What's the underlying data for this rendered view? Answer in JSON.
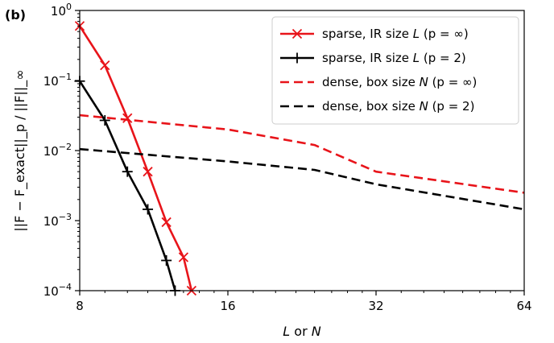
{
  "chart_data": {
    "type": "line",
    "panel_label": "(b)",
    "xlabel": "L or N",
    "ylabel": "||F − F_exact||_p / ||F||_∞",
    "x_scale": "log2",
    "y_scale": "log",
    "xlim": [
      8,
      64
    ],
    "ylim": [
      0.0001,
      1
    ],
    "x_ticks": [
      8,
      16,
      32,
      64
    ],
    "y_ticks": [
      0.0001,
      0.001,
      0.01,
      0.1,
      1
    ],
    "y_tick_labels": [
      {
        "base": "10",
        "exp": "−4"
      },
      {
        "base": "10",
        "exp": "−3"
      },
      {
        "base": "10",
        "exp": "−2"
      },
      {
        "base": "10",
        "exp": "−1"
      },
      {
        "base": "10",
        "exp": "0"
      }
    ],
    "grid": false,
    "legend_position": "top-right",
    "series": [
      {
        "name": "sparse, IR size L (p = ∞)",
        "color": "#e8141a",
        "line_style": "solid",
        "marker": "x",
        "x": [
          8,
          9,
          10,
          11,
          12,
          13,
          13.5
        ],
        "y": [
          0.6,
          0.165,
          0.029,
          0.005,
          0.00095,
          0.0003,
          0.0001
        ]
      },
      {
        "name": "sparse, IR size L (p = 2)",
        "color": "#000000",
        "line_style": "solid",
        "marker": "+",
        "x": [
          8,
          9,
          10,
          11,
          12,
          12.5
        ],
        "y": [
          0.098,
          0.027,
          0.005,
          0.00145,
          0.00027,
          0.0001
        ]
      },
      {
        "name": "dense, box size N (p = ∞)",
        "color": "#e8141a",
        "line_style": "dashed",
        "marker": "none",
        "x": [
          8,
          16,
          24,
          32,
          64
        ],
        "y": [
          0.032,
          0.02,
          0.012,
          0.005,
          0.0025
        ]
      },
      {
        "name": "dense, box size N (p = 2)",
        "color": "#000000",
        "line_style": "dashed",
        "marker": "none",
        "x": [
          8,
          16,
          24,
          32,
          64
        ],
        "y": [
          0.0105,
          0.007,
          0.0053,
          0.0033,
          0.00145
        ]
      }
    ],
    "legend_entries": [
      {
        "prefix": "sparse, IR size ",
        "var": "L",
        "suffix": " (p = ∞)"
      },
      {
        "prefix": "sparse, IR size ",
        "var": "L",
        "suffix": " (p = 2)"
      },
      {
        "prefix": "dense, box size ",
        "var": "N",
        "suffix": " (p = ∞)"
      },
      {
        "prefix": "dense, box size ",
        "var": "N",
        "suffix": " (p = 2)"
      }
    ],
    "xlabel_parts": {
      "a": "L",
      "mid": " or ",
      "b": "N"
    }
  }
}
